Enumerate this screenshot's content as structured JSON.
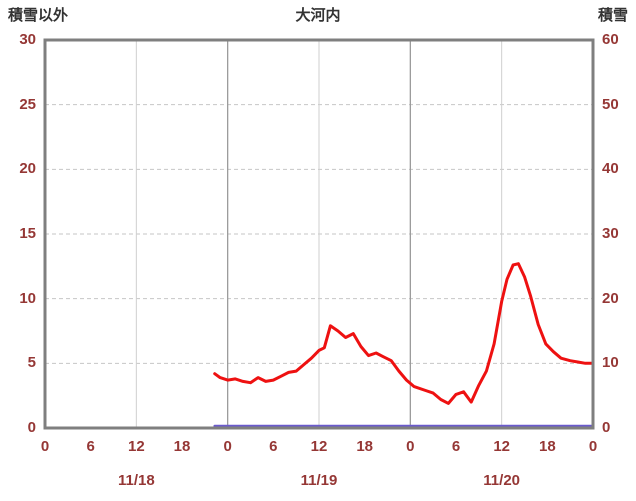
{
  "header": {
    "left_axis_title": "積雪以外",
    "chart_title": "大河内",
    "right_axis_title": "積雪"
  },
  "chart_data": {
    "type": "line",
    "title": "大河内",
    "left_axis": {
      "label": "積雪以外",
      "min": 0,
      "max": 30,
      "tick_step": 5,
      "ticks": [
        0,
        5,
        10,
        15,
        20,
        25,
        30
      ]
    },
    "right_axis": {
      "label": "積雪",
      "min": 0,
      "max": 60,
      "tick_step": 10,
      "ticks": [
        0,
        10,
        20,
        30,
        40,
        50,
        60
      ]
    },
    "x_axis": {
      "total_hours": 72,
      "hour_ticks": [
        {
          "hour": 0,
          "label": "0"
        },
        {
          "hour": 6,
          "label": "6"
        },
        {
          "hour": 12,
          "label": "12"
        },
        {
          "hour": 18,
          "label": "18"
        },
        {
          "hour": 24,
          "label": "0"
        },
        {
          "hour": 30,
          "label": "6"
        },
        {
          "hour": 36,
          "label": "12"
        },
        {
          "hour": 42,
          "label": "18"
        },
        {
          "hour": 48,
          "label": "0"
        },
        {
          "hour": 54,
          "label": "6"
        },
        {
          "hour": 60,
          "label": "12"
        },
        {
          "hour": 66,
          "label": "18"
        },
        {
          "hour": 72,
          "label": "0"
        }
      ],
      "day_labels": [
        {
          "center_hour": 12,
          "label": "11/18"
        },
        {
          "center_hour": 36,
          "label": "11/19"
        },
        {
          "center_hour": 60,
          "label": "11/20"
        }
      ],
      "noon_grid_hours": [
        12,
        36,
        60
      ],
      "midnight_grid_hours": [
        24,
        48
      ]
    },
    "grid": {
      "horizontal_ticks": [
        5,
        10,
        15,
        20,
        25
      ],
      "h_color": "#c6c6c6",
      "noon_color": "#cfcfcf",
      "midnight_color": "#9b9b9b",
      "frame_color": "#7f7f7f"
    },
    "colors": {
      "tick_label": "#953735",
      "title": "#333333",
      "red_series": "#ee1111",
      "purple_series": "#6a5acd"
    },
    "series": [
      {
        "name": "sekisetsu-igai-line",
        "color": "#ee1111",
        "width": 3,
        "axis": "left",
        "points": [
          [
            22.3,
            4.2
          ],
          [
            23,
            3.9
          ],
          [
            24,
            3.7
          ],
          [
            25,
            3.8
          ],
          [
            26,
            3.6
          ],
          [
            27,
            3.5
          ],
          [
            28,
            3.9
          ],
          [
            29,
            3.6
          ],
          [
            30,
            3.7
          ],
          [
            31,
            4.0
          ],
          [
            32,
            4.3
          ],
          [
            33,
            4.4
          ],
          [
            34,
            4.9
          ],
          [
            35,
            5.4
          ],
          [
            36,
            6.0
          ],
          [
            36.7,
            6.2
          ],
          [
            37.5,
            7.9
          ],
          [
            38.5,
            7.5
          ],
          [
            39.5,
            7.0
          ],
          [
            40.5,
            7.3
          ],
          [
            41.5,
            6.3
          ],
          [
            42.5,
            5.6
          ],
          [
            43.5,
            5.8
          ],
          [
            44.5,
            5.5
          ],
          [
            45.5,
            5.2
          ],
          [
            46.5,
            4.4
          ],
          [
            47.5,
            3.7
          ],
          [
            48.5,
            3.2
          ],
          [
            50,
            2.9
          ],
          [
            51,
            2.7
          ],
          [
            52,
            2.2
          ],
          [
            53,
            1.9
          ],
          [
            54,
            2.6
          ],
          [
            55,
            2.8
          ],
          [
            56,
            2.0
          ],
          [
            57,
            3.3
          ],
          [
            58,
            4.4
          ],
          [
            59,
            6.5
          ],
          [
            60,
            9.8
          ],
          [
            60.7,
            11.5
          ],
          [
            61.5,
            12.6
          ],
          [
            62.2,
            12.7
          ],
          [
            63,
            11.7
          ],
          [
            63.8,
            10.2
          ],
          [
            64.8,
            8.0
          ],
          [
            65.8,
            6.5
          ],
          [
            66.8,
            5.9
          ],
          [
            67.8,
            5.4
          ],
          [
            69,
            5.2
          ],
          [
            70,
            5.1
          ],
          [
            71,
            5.0
          ],
          [
            72,
            5.0
          ]
        ]
      },
      {
        "name": "sekisetsu-line",
        "color": "#6a5acd",
        "width": 2.5,
        "axis": "left",
        "points": [
          [
            22.3,
            0
          ],
          [
            72,
            0
          ]
        ]
      }
    ]
  }
}
